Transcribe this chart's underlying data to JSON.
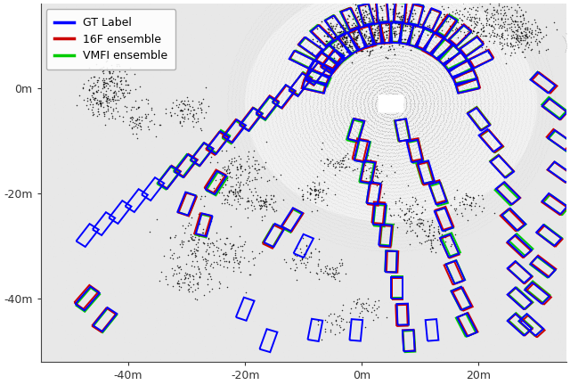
{
  "title": "",
  "xlabel": "",
  "ylabel": "",
  "xlim": [
    -55,
    35
  ],
  "ylim": [
    -52,
    16
  ],
  "xticks": [
    -40,
    -20,
    0,
    20
  ],
  "yticks": [
    0,
    -20,
    -40
  ],
  "xtick_labels": [
    "-40m",
    "-20m",
    "0m",
    "20m"
  ],
  "ytick_labels": [
    "0m",
    "-20m",
    "-40m"
  ],
  "background_color": "#ffffff",
  "legend_labels": [
    "GT Label",
    "16F ensemble",
    "VMFI ensemble"
  ],
  "legend_colors": [
    "#0000ff",
    "#cc0000",
    "#00cc00"
  ],
  "gt_color": "#0000ff",
  "pred1_color": "#cc0000",
  "pred2_color": "#00cc00",
  "figsize": [
    6.4,
    4.32
  ],
  "dpi": 100,
  "ego_x": 5.0,
  "ego_y": -3.0,
  "lidar_rings_inner": 2.0,
  "lidar_rings_outer": 28.0,
  "n_rings": 40
}
